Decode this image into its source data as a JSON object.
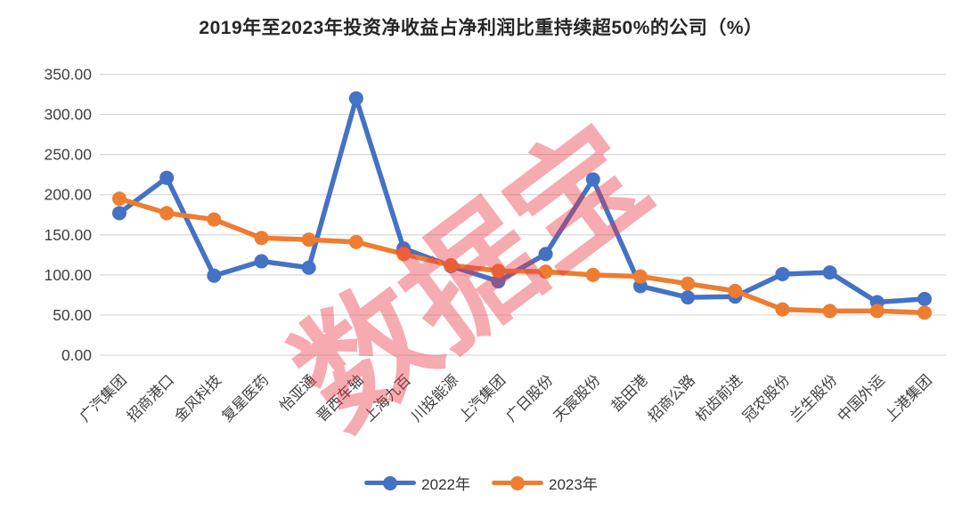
{
  "title": "2019年至2023年投资净收益占净利润比重持续超50%的公司（%）",
  "watermark": {
    "text": "数据宝",
    "color": "rgba(232,56,66,0.42)"
  },
  "chart_data": {
    "type": "line",
    "title": "2019年至2023年投资净收益占净利润比重持续超50%的公司（%）",
    "categories": [
      "广汽集团",
      "招商港口",
      "金风科技",
      "复星医药",
      "怡亚通",
      "晋西车轴",
      "上海九百",
      "川投能源",
      "上汽集团",
      "广日股份",
      "天宸股份",
      "盐田港",
      "招商公路",
      "杭齿前进",
      "冠农股份",
      "兰生股份",
      "中国外运",
      "上港集团"
    ],
    "series": [
      {
        "name": "2022年",
        "color": "#4472C4",
        "values": [
          177,
          221,
          99,
          117,
          109,
          320,
          133,
          111,
          92,
          126,
          219,
          86,
          72,
          73,
          101,
          103,
          66,
          70
        ]
      },
      {
        "name": "2023年",
        "color": "#ED7D31",
        "values": [
          195,
          177,
          169,
          146,
          144,
          141,
          126,
          112,
          105,
          104,
          100,
          98,
          89,
          80,
          57,
          55,
          55,
          53
        ]
      }
    ],
    "xlabel": "",
    "ylabel": "",
    "ylim": [
      0,
      350
    ],
    "y_tick_step": 50,
    "y_tick_labels": [
      "0.00",
      "50.00",
      "100.00",
      "150.00",
      "200.00",
      "250.00",
      "300.00",
      "350.00"
    ],
    "grid": true,
    "gridline_color": "#D9D9D9",
    "axis_label_color": "#404040",
    "legend_position": "bottom"
  }
}
